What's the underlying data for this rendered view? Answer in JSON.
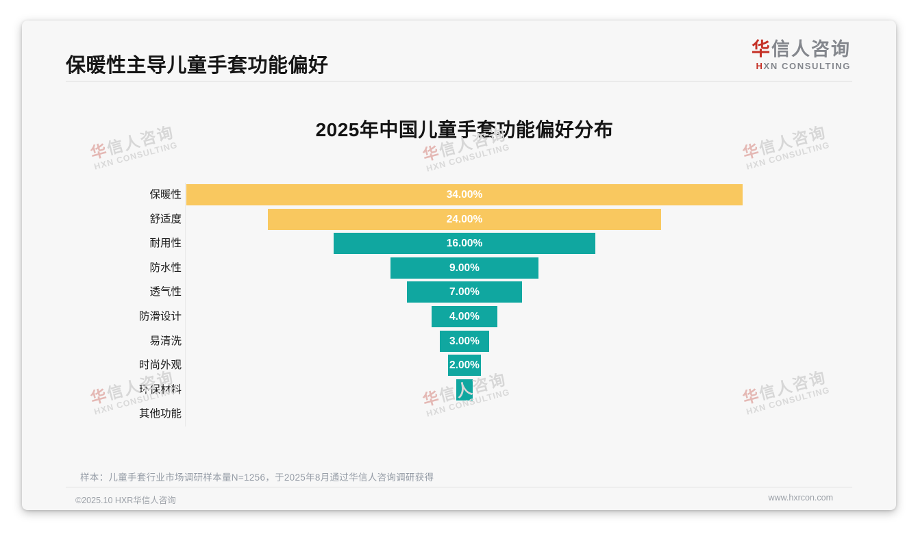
{
  "header": {
    "title": "保暖性主导儿童手套功能偏好"
  },
  "logo": {
    "cn_accent": "华",
    "cn_rest": "信人咨询",
    "en_accent": "H",
    "en_rest": "XN CONSULTING"
  },
  "watermark": {
    "cn_accent": "华",
    "cn_rest": "信人咨询",
    "en": "HXN CONSULTING"
  },
  "footer": {
    "note": "样本：儿童手套行业市场调研样本量N=1256，于2025年8月通过华信人咨询调研获得",
    "copyright": "©2025.10 HXR华信人咨询",
    "website": "www.hxrcon.com"
  },
  "chart_data": {
    "type": "bar",
    "variant": "centered-funnel",
    "title": "2025年中国儿童手套功能偏好分布",
    "categories": [
      "保暖性",
      "舒适度",
      "耐用性",
      "防水性",
      "透气性",
      "防滑设计",
      "易清洗",
      "时尚外观",
      "环保材料",
      "其他功能"
    ],
    "values": [
      34,
      24,
      16,
      9,
      7,
      4,
      3,
      2,
      1,
      0
    ],
    "value_labels": [
      "34.00%",
      "24.00%",
      "16.00%",
      "9.00%",
      "7.00%",
      "4.00%",
      "3.00%",
      "2.00%",
      "",
      ""
    ],
    "unit": "%",
    "xlim": [
      0,
      100
    ],
    "highlight_count": 2,
    "colors": {
      "highlight": "#F9C85F",
      "normal": "#10A7A0",
      "value_text": "#FFFFFF"
    },
    "legend": "none",
    "grid": "off"
  }
}
